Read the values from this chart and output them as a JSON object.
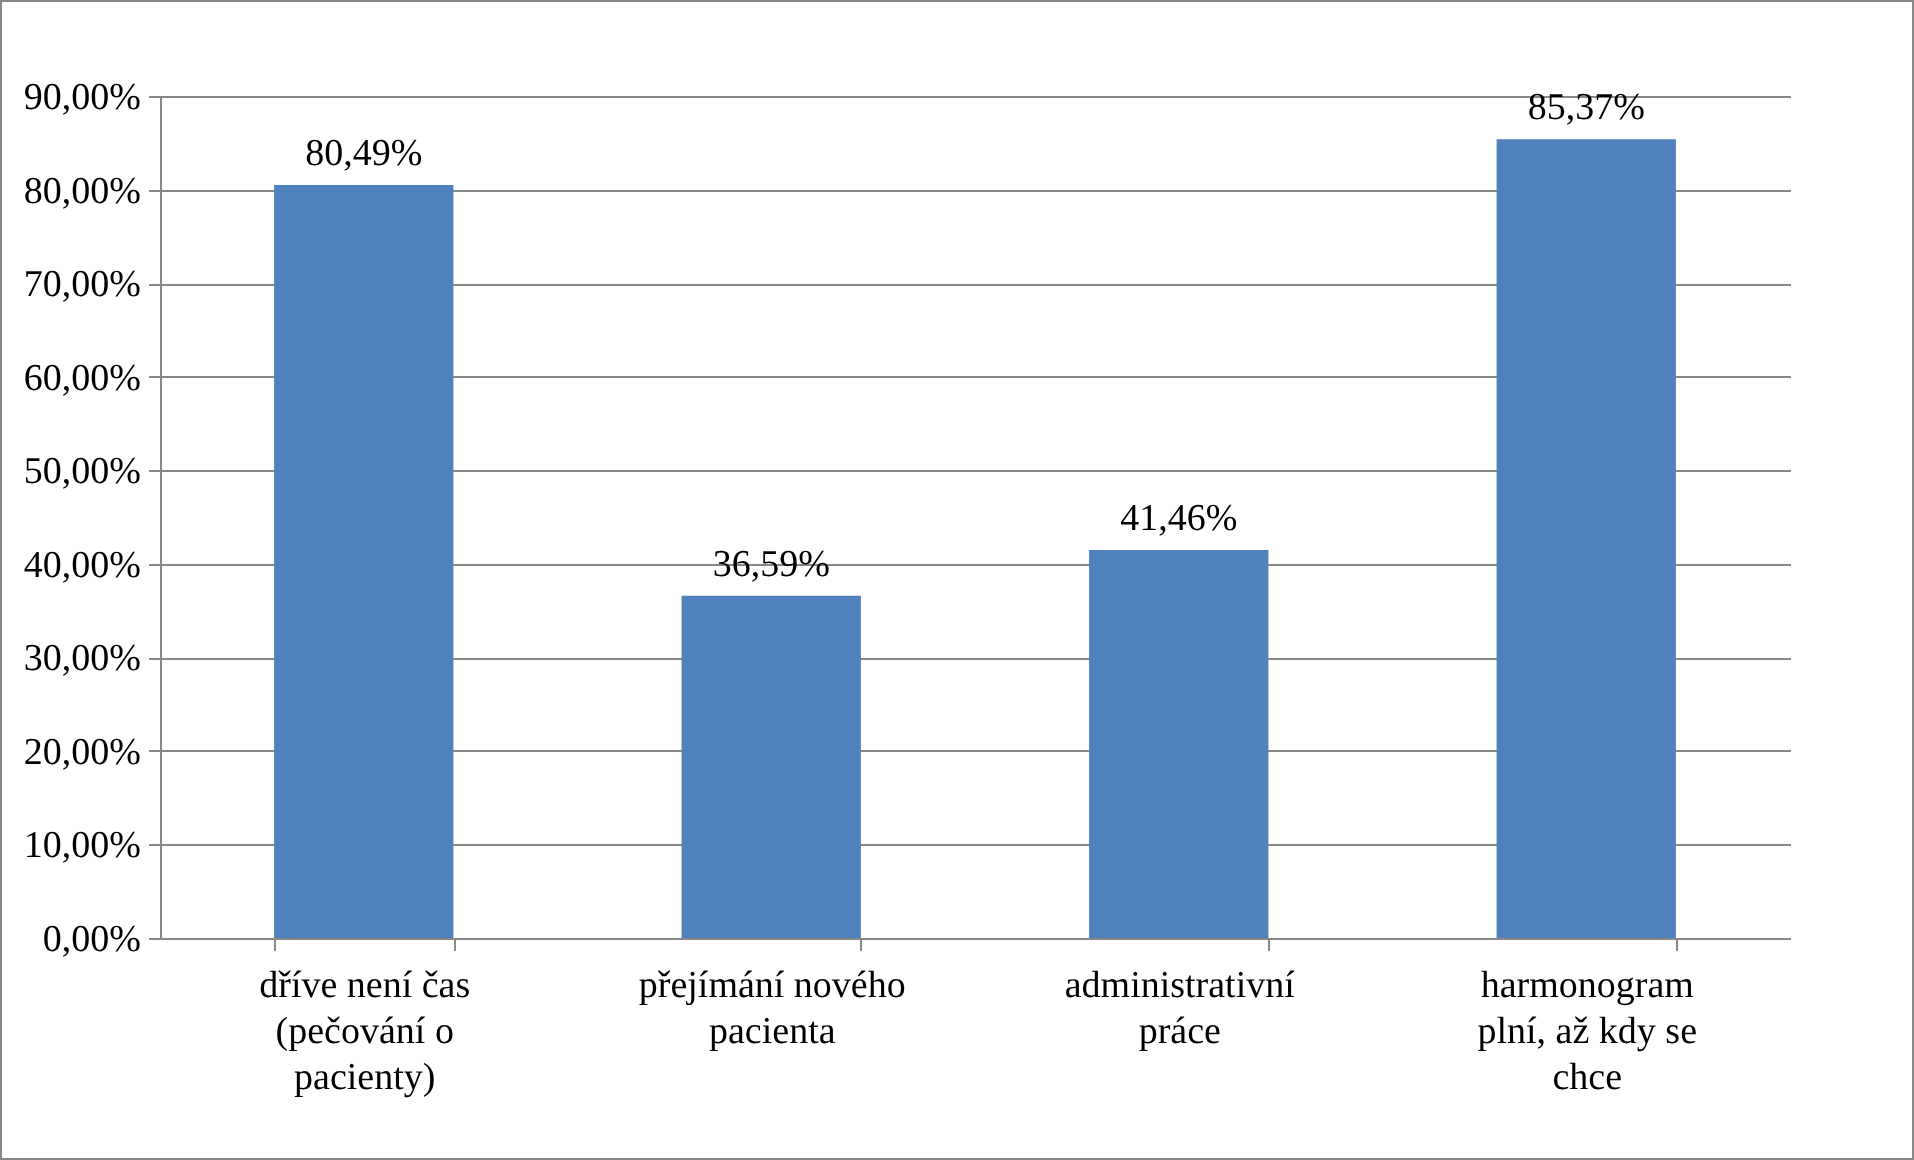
{
  "chart_data": {
    "type": "bar",
    "categories": [
      "dříve není čas (pečování o pacienty)",
      "přejímání nového pacienta",
      "administrativní práce",
      "harmonogram plní, až kdy se chce"
    ],
    "values": [
      80.49,
      36.59,
      41.46,
      85.37
    ],
    "value_labels": [
      "80,49%",
      "36,59%",
      "41,46%",
      "85,37%"
    ],
    "color": "#4f81bd",
    "ylim": [
      0,
      90
    ],
    "yticks": [
      {
        "value": 0,
        "label": "0,00%"
      },
      {
        "value": 10,
        "label": "10,00%"
      },
      {
        "value": 20,
        "label": "20,00%"
      },
      {
        "value": 30,
        "label": "30,00%"
      },
      {
        "value": 40,
        "label": "40,00%"
      },
      {
        "value": 50,
        "label": "50,00%"
      },
      {
        "value": 60,
        "label": "60,00%"
      },
      {
        "value": 70,
        "label": "70,00%"
      },
      {
        "value": 80,
        "label": "80,00%"
      },
      {
        "value": 90,
        "label": "90,00%"
      }
    ],
    "grid": "y"
  }
}
